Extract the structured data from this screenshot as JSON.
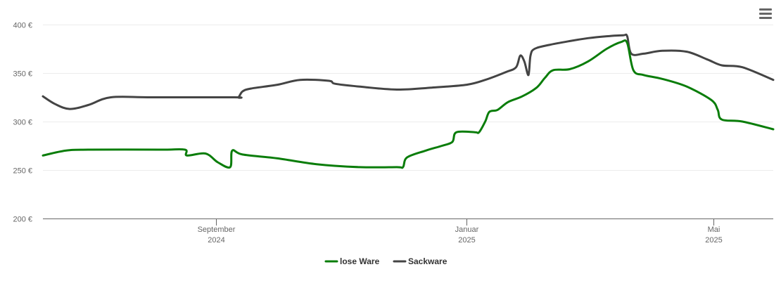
{
  "menu": {
    "icon": "hamburger-menu-icon"
  },
  "chart_data": {
    "type": "line",
    "title": "",
    "xlabel": "",
    "ylabel": "",
    "ylim": [
      200,
      400
    ],
    "y_ticks": [
      {
        "value": 200,
        "label": "200 €"
      },
      {
        "value": 250,
        "label": "250 €"
      },
      {
        "value": 300,
        "label": "300 €"
      },
      {
        "value": 350,
        "label": "350 €"
      },
      {
        "value": 400,
        "label": "400 €"
      }
    ],
    "xlim": [
      "2024-06-09",
      "2025-05-30"
    ],
    "x_ticks": [
      {
        "date": "2024-09-01",
        "month": "September",
        "year": "2024"
      },
      {
        "date": "2025-01-01",
        "month": "Januar",
        "year": "2025"
      },
      {
        "date": "2025-05-01",
        "month": "Mai",
        "year": "2025"
      }
    ],
    "grid": true,
    "legend_position": "bottom-center",
    "series": [
      {
        "name": "lose Ware",
        "color": "#0a7d0a",
        "points": [
          [
            "2024-06-09",
            265
          ],
          [
            "2024-06-20",
            270
          ],
          [
            "2024-07-01",
            271
          ],
          [
            "2024-08-05",
            271
          ],
          [
            "2024-08-17",
            271
          ],
          [
            "2024-08-18",
            265
          ],
          [
            "2024-08-27",
            267
          ],
          [
            "2024-09-02",
            258
          ],
          [
            "2024-09-08",
            253
          ],
          [
            "2024-09-09",
            270
          ],
          [
            "2024-09-14",
            266
          ],
          [
            "2024-10-01",
            262
          ],
          [
            "2024-10-20",
            256
          ],
          [
            "2024-11-10",
            253
          ],
          [
            "2024-11-28",
            253
          ],
          [
            "2024-12-01",
            253
          ],
          [
            "2024-12-03",
            263
          ],
          [
            "2024-12-12",
            270
          ],
          [
            "2024-12-20",
            275
          ],
          [
            "2024-12-25",
            279
          ],
          [
            "2024-12-27",
            289
          ],
          [
            "2025-01-05",
            289
          ],
          [
            "2025-01-07",
            289
          ],
          [
            "2025-01-10",
            300
          ],
          [
            "2025-01-12",
            310
          ],
          [
            "2025-01-16",
            312
          ],
          [
            "2025-01-21",
            320
          ],
          [
            "2025-01-28",
            326
          ],
          [
            "2025-02-04",
            335
          ],
          [
            "2025-02-08",
            345
          ],
          [
            "2025-02-12",
            353
          ],
          [
            "2025-02-20",
            354
          ],
          [
            "2025-03-01",
            362
          ],
          [
            "2025-03-10",
            375
          ],
          [
            "2025-03-17",
            382
          ],
          [
            "2025-03-20",
            381
          ],
          [
            "2025-03-23",
            353
          ],
          [
            "2025-03-28",
            348
          ],
          [
            "2025-04-06",
            344
          ],
          [
            "2025-04-18",
            336
          ],
          [
            "2025-04-30",
            322
          ],
          [
            "2025-05-03",
            312
          ],
          [
            "2025-05-05",
            302
          ],
          [
            "2025-05-15",
            300
          ],
          [
            "2025-05-30",
            292
          ]
        ]
      },
      {
        "name": "Sackware",
        "color": "#444444",
        "points": [
          [
            "2024-06-09",
            326
          ],
          [
            "2024-06-15",
            318
          ],
          [
            "2024-06-22",
            313
          ],
          [
            "2024-07-01",
            317
          ],
          [
            "2024-07-12",
            325
          ],
          [
            "2024-08-01",
            325
          ],
          [
            "2024-09-10",
            325
          ],
          [
            "2024-09-12",
            325
          ],
          [
            "2024-09-14",
            331
          ],
          [
            "2024-09-18",
            334
          ],
          [
            "2024-10-01",
            338
          ],
          [
            "2024-10-12",
            343
          ],
          [
            "2024-10-26",
            342
          ],
          [
            "2024-10-29",
            339
          ],
          [
            "2024-11-10",
            336
          ],
          [
            "2024-11-28",
            333
          ],
          [
            "2024-12-15",
            335
          ],
          [
            "2025-01-01",
            338
          ],
          [
            "2025-01-10",
            343
          ],
          [
            "2025-01-20",
            351
          ],
          [
            "2025-01-25",
            356
          ],
          [
            "2025-01-27",
            368
          ],
          [
            "2025-01-29",
            362
          ],
          [
            "2025-01-31",
            348
          ],
          [
            "2025-02-01",
            368
          ],
          [
            "2025-02-03",
            375
          ],
          [
            "2025-02-10",
            379
          ],
          [
            "2025-02-20",
            383
          ],
          [
            "2025-03-01",
            386
          ],
          [
            "2025-03-10",
            388
          ],
          [
            "2025-03-18",
            389
          ],
          [
            "2025-03-20",
            388
          ],
          [
            "2025-03-22",
            370
          ],
          [
            "2025-03-28",
            370
          ],
          [
            "2025-04-06",
            373
          ],
          [
            "2025-04-18",
            372
          ],
          [
            "2025-04-28",
            364
          ],
          [
            "2025-05-05",
            358
          ],
          [
            "2025-05-15",
            356
          ],
          [
            "2025-05-30",
            343
          ]
        ]
      }
    ]
  }
}
